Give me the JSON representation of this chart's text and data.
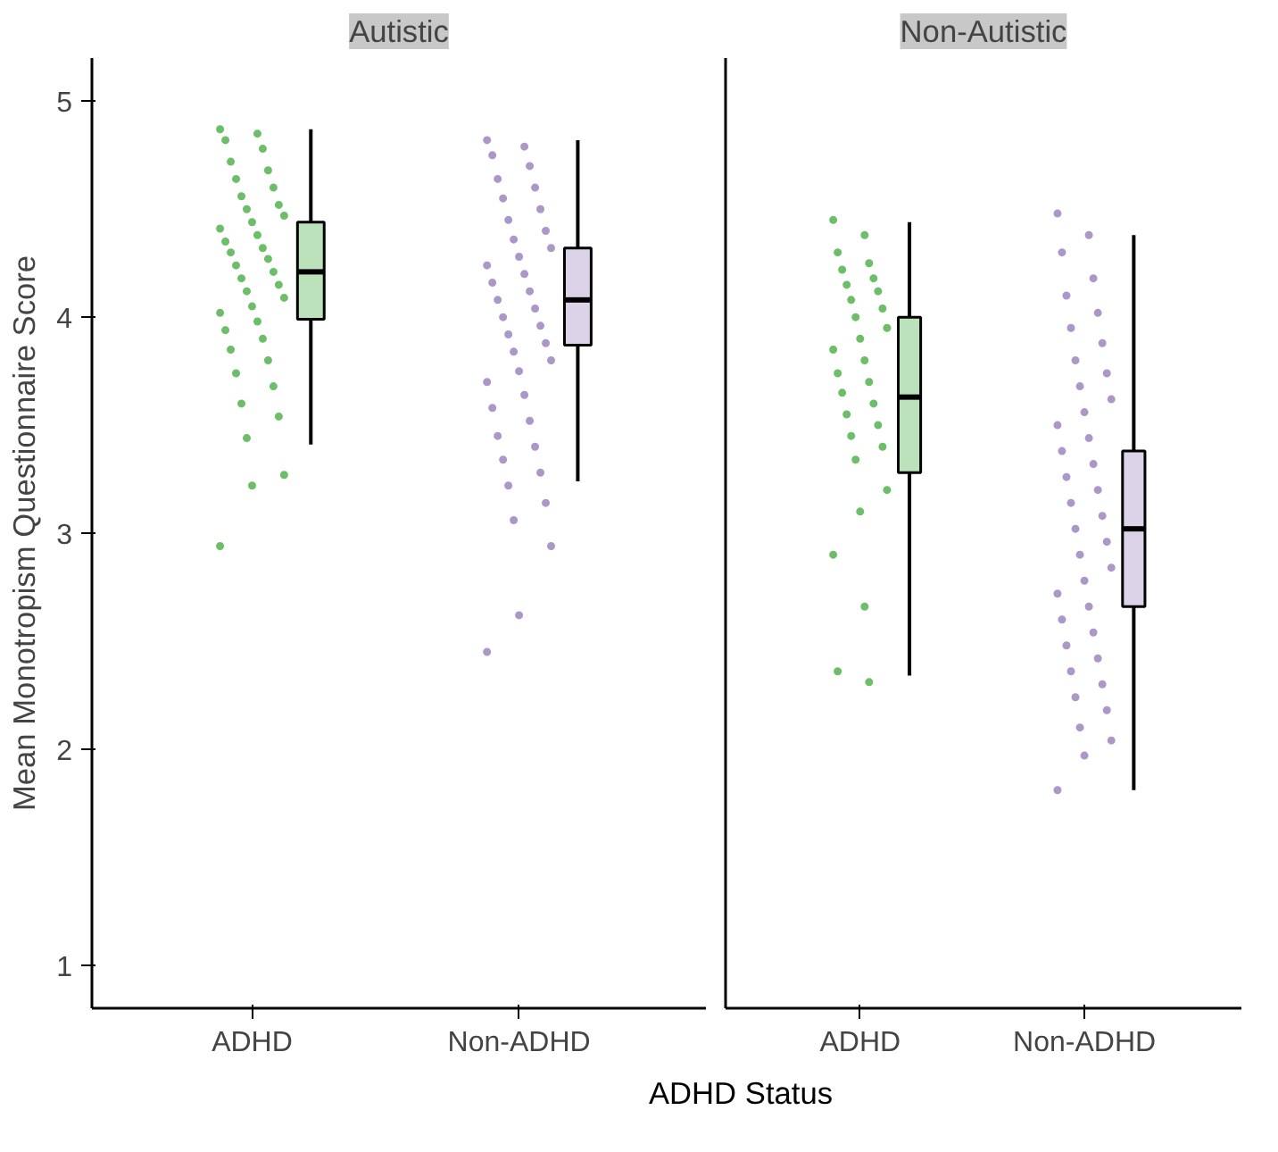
{
  "chart_data": [
    {
      "type": "box",
      "title": "Autistic",
      "xlabel": "ADHD Status",
      "ylabel": "Mean Monotropism Questionnaire Score",
      "categories": [
        "ADHD",
        "Non-ADHD"
      ],
      "colors": [
        "#bce2bb",
        "#dcd3e8"
      ],
      "ylim": [
        0.8,
        5.2
      ],
      "yticks": [
        1,
        2,
        3,
        4,
        5
      ],
      "grid": false,
      "boxes": [
        {
          "low": 3.41,
          "q1": 3.99,
          "median": 4.21,
          "q3": 4.44,
          "high": 4.87
        },
        {
          "low": 3.24,
          "q1": 3.87,
          "median": 4.08,
          "q3": 4.32,
          "high": 4.82
        }
      ],
      "series": [
        {
          "type": "scatter",
          "color": "#6cbf68",
          "x": [
            "ADHD",
            "ADHD",
            "ADHD",
            "ADHD",
            "ADHD",
            "ADHD",
            "ADHD",
            "ADHD",
            "ADHD",
            "ADHD",
            "ADHD",
            "ADHD",
            "ADHD",
            "ADHD",
            "ADHD",
            "ADHD",
            "ADHD",
            "ADHD",
            "ADHD",
            "ADHD",
            "ADHD",
            "ADHD",
            "ADHD",
            "ADHD",
            "ADHD",
            "ADHD",
            "ADHD",
            "ADHD",
            "ADHD",
            "ADHD",
            "ADHD",
            "ADHD",
            "ADHD",
            "ADHD",
            "ADHD",
            "ADHD",
            "ADHD",
            "ADHD",
            "ADHD",
            "ADHD"
          ],
          "values": [
            4.87,
            4.85,
            4.82,
            4.78,
            4.72,
            4.68,
            4.64,
            4.6,
            4.56,
            4.52,
            4.5,
            4.47,
            4.44,
            4.41,
            4.38,
            4.35,
            4.32,
            4.3,
            4.27,
            4.24,
            4.21,
            4.18,
            4.15,
            4.12,
            4.09,
            4.05,
            4.02,
            3.98,
            3.94,
            3.9,
            3.85,
            3.8,
            3.74,
            3.68,
            3.6,
            3.54,
            3.44,
            3.27,
            3.22,
            2.94
          ]
        },
        {
          "type": "scatter",
          "color": "#ab98c9",
          "x": [
            "Non-ADHD",
            "Non-ADHD",
            "Non-ADHD",
            "Non-ADHD",
            "Non-ADHD",
            "Non-ADHD",
            "Non-ADHD",
            "Non-ADHD",
            "Non-ADHD",
            "Non-ADHD",
            "Non-ADHD",
            "Non-ADHD",
            "Non-ADHD",
            "Non-ADHD",
            "Non-ADHD",
            "Non-ADHD",
            "Non-ADHD",
            "Non-ADHD",
            "Non-ADHD",
            "Non-ADHD",
            "Non-ADHD",
            "Non-ADHD",
            "Non-ADHD",
            "Non-ADHD",
            "Non-ADHD",
            "Non-ADHD",
            "Non-ADHD",
            "Non-ADHD",
            "Non-ADHD",
            "Non-ADHD",
            "Non-ADHD",
            "Non-ADHD",
            "Non-ADHD",
            "Non-ADHD",
            "Non-ADHD",
            "Non-ADHD",
            "Non-ADHD",
            "Non-ADHD",
            "Non-ADHD",
            "Non-ADHD"
          ],
          "values": [
            4.82,
            4.79,
            4.75,
            4.7,
            4.64,
            4.6,
            4.55,
            4.5,
            4.45,
            4.4,
            4.36,
            4.32,
            4.28,
            4.24,
            4.2,
            4.16,
            4.12,
            4.08,
            4.04,
            4.0,
            3.96,
            3.92,
            3.88,
            3.84,
            3.8,
            3.75,
            3.7,
            3.64,
            3.58,
            3.52,
            3.45,
            3.4,
            3.34,
            3.28,
            3.22,
            3.14,
            3.06,
            2.94,
            2.62,
            2.45
          ]
        }
      ]
    },
    {
      "type": "box",
      "title": "Non-Autistic",
      "categories": [
        "ADHD",
        "Non-ADHD"
      ],
      "colors": [
        "#bce2bb",
        "#dcd3e8"
      ],
      "ylim": [
        0.8,
        5.2
      ],
      "yticks": [
        1,
        2,
        3,
        4,
        5
      ],
      "tick_labels": "x",
      "grid": false,
      "boxes": [
        {
          "low": 2.34,
          "q1": 3.28,
          "median": 3.63,
          "q3": 4.0,
          "high": 4.44
        },
        {
          "low": 1.81,
          "q1": 2.66,
          "median": 3.02,
          "q3": 3.38,
          "high": 4.38
        }
      ],
      "series": [
        {
          "type": "scatter",
          "color": "#6cbf68",
          "x": [
            "ADHD",
            "ADHD",
            "ADHD",
            "ADHD",
            "ADHD",
            "ADHD",
            "ADHD",
            "ADHD",
            "ADHD",
            "ADHD",
            "ADHD",
            "ADHD",
            "ADHD",
            "ADHD",
            "ADHD",
            "ADHD",
            "ADHD",
            "ADHD",
            "ADHD",
            "ADHD",
            "ADHD",
            "ADHD",
            "ADHD",
            "ADHD",
            "ADHD",
            "ADHD",
            "ADHD",
            "ADHD",
            "ADHD",
            "ADHD"
          ],
          "values": [
            4.45,
            4.38,
            4.3,
            4.25,
            4.22,
            4.18,
            4.15,
            4.12,
            4.08,
            4.04,
            4.0,
            3.95,
            3.9,
            3.85,
            3.8,
            3.74,
            3.7,
            3.65,
            3.6,
            3.55,
            3.5,
            3.45,
            3.4,
            3.34,
            3.2,
            3.1,
            2.9,
            2.66,
            2.36,
            2.31
          ]
        },
        {
          "type": "scatter",
          "color": "#ab98c9",
          "x": [
            "Non-ADHD",
            "Non-ADHD",
            "Non-ADHD",
            "Non-ADHD",
            "Non-ADHD",
            "Non-ADHD",
            "Non-ADHD",
            "Non-ADHD",
            "Non-ADHD",
            "Non-ADHD",
            "Non-ADHD",
            "Non-ADHD",
            "Non-ADHD",
            "Non-ADHD",
            "Non-ADHD",
            "Non-ADHD",
            "Non-ADHD",
            "Non-ADHD",
            "Non-ADHD",
            "Non-ADHD",
            "Non-ADHD",
            "Non-ADHD",
            "Non-ADHD",
            "Non-ADHD",
            "Non-ADHD",
            "Non-ADHD",
            "Non-ADHD",
            "Non-ADHD",
            "Non-ADHD",
            "Non-ADHD",
            "Non-ADHD",
            "Non-ADHD",
            "Non-ADHD",
            "Non-ADHD",
            "Non-ADHD",
            "Non-ADHD",
            "Non-ADHD",
            "Non-ADHD",
            "Non-ADHD",
            "Non-ADHD"
          ],
          "values": [
            4.48,
            4.38,
            4.3,
            4.18,
            4.1,
            4.02,
            3.95,
            3.88,
            3.8,
            3.74,
            3.68,
            3.62,
            3.56,
            3.5,
            3.44,
            3.38,
            3.32,
            3.26,
            3.2,
            3.14,
            3.08,
            3.02,
            2.96,
            2.9,
            2.84,
            2.78,
            2.72,
            2.66,
            2.6,
            2.54,
            2.48,
            2.42,
            2.36,
            2.3,
            2.24,
            2.18,
            2.1,
            2.04,
            1.97,
            1.81
          ]
        }
      ]
    }
  ]
}
